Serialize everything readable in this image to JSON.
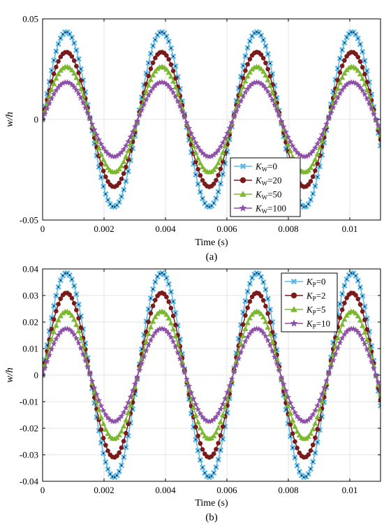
{
  "colors": {
    "frame": "#000000",
    "grid": "#e3e3e3",
    "series": [
      "#5ab8e6",
      "#7a1a1a",
      "#7cb82f",
      "#8e4fa8"
    ],
    "marker_dots": "#0d1b3a"
  },
  "chart_data": [
    {
      "type": "line",
      "panel_label": "(a)",
      "title": "",
      "xlabel": "Time (s)",
      "ylabel": "w/h",
      "xlim": [
        0,
        0.011
      ],
      "ylim": [
        -0.05,
        0.05
      ],
      "grid": true,
      "xticks": [
        0,
        0.002,
        0.004,
        0.006,
        0.008,
        0.01
      ],
      "xtick_labels": [
        "0",
        "0.002",
        "0.004",
        "0.006",
        "0.008",
        "0.01"
      ],
      "yticks": [
        -0.05,
        0,
        0.05
      ],
      "ytick_labels": [
        "-0.05",
        "0",
        "0.05"
      ],
      "legend_position": "lower-right",
      "period": 0.0031,
      "series": [
        {
          "name": "K_W=0",
          "legend_symbol": "K",
          "legend_sub": "W",
          "legend_value": "=0",
          "marker": "x",
          "amplitude": 0.0435
        },
        {
          "name": "K_W=20",
          "legend_symbol": "K",
          "legend_sub": "W",
          "legend_value": "=20",
          "marker": "circle",
          "amplitude": 0.0335
        },
        {
          "name": "K_W=50",
          "legend_symbol": "K",
          "legend_sub": "W",
          "legend_value": "=50",
          "marker": "triangle",
          "amplitude": 0.0262
        },
        {
          "name": "K_W=100",
          "legend_symbol": "K",
          "legend_sub": "W",
          "legend_value": "=100",
          "marker": "star",
          "amplitude": 0.0185
        }
      ]
    },
    {
      "type": "line",
      "panel_label": "(b)",
      "title": "",
      "xlabel": "Time (s)",
      "ylabel": "w/h",
      "xlim": [
        0,
        0.011
      ],
      "ylim": [
        -0.04,
        0.04
      ],
      "grid": true,
      "xticks": [
        0,
        0.002,
        0.004,
        0.006,
        0.008,
        0.01
      ],
      "xtick_labels": [
        "0",
        "0.002",
        "0.004",
        "0.006",
        "0.008",
        "0.01"
      ],
      "yticks": [
        -0.04,
        -0.03,
        -0.02,
        -0.01,
        0,
        0.01,
        0.02,
        0.03,
        0.04
      ],
      "ytick_labels": [
        "-0.04",
        "-0.03",
        "-0.02",
        "-0.01",
        "0",
        "0.01",
        "0.02",
        "0.03",
        "0.04"
      ],
      "legend_position": "upper-right",
      "period": 0.0031,
      "series": [
        {
          "name": "K_P=0",
          "legend_symbol": "K",
          "legend_sub": "P",
          "legend_value": "=0",
          "marker": "x",
          "amplitude": 0.0385
        },
        {
          "name": "K_P=2",
          "legend_symbol": "K",
          "legend_sub": "P",
          "legend_value": "=2",
          "marker": "circle",
          "amplitude": 0.031
        },
        {
          "name": "K_P=5",
          "legend_symbol": "K",
          "legend_sub": "P",
          "legend_value": "=5",
          "marker": "triangle",
          "amplitude": 0.024
        },
        {
          "name": "K_P=10",
          "legend_symbol": "K",
          "legend_sub": "P",
          "legend_value": "=10",
          "marker": "star",
          "amplitude": 0.0175
        }
      ]
    }
  ]
}
